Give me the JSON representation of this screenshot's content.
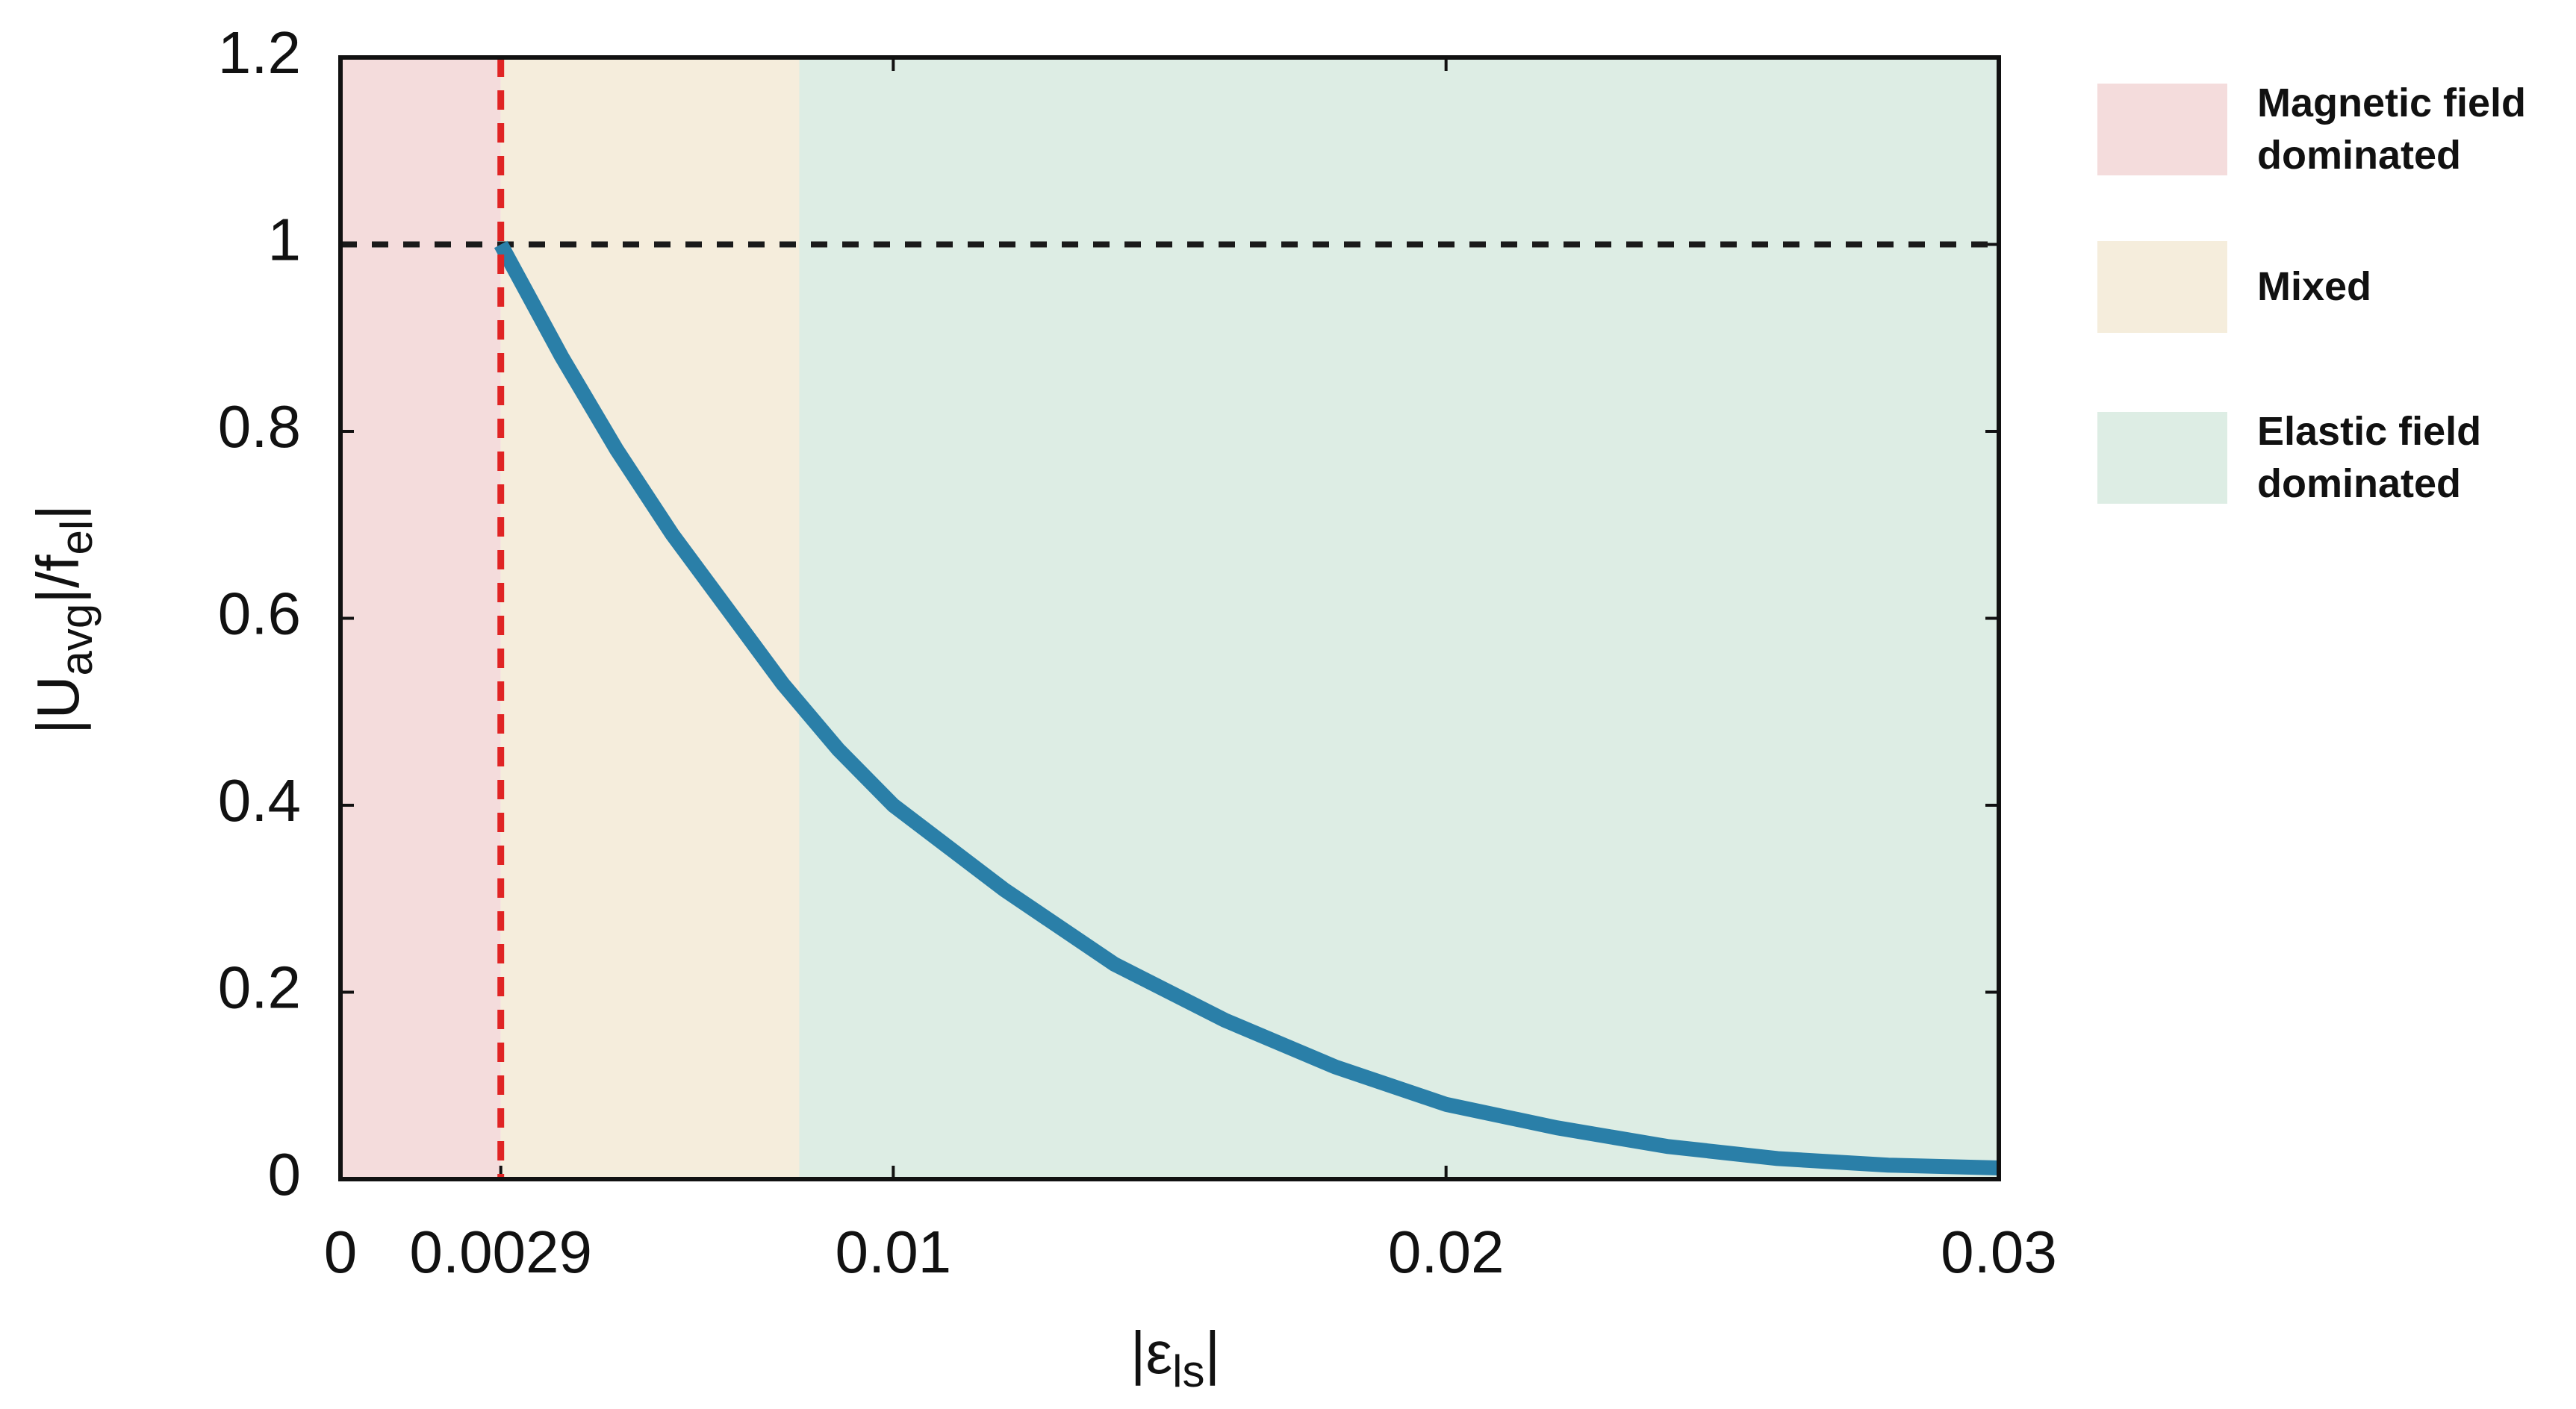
{
  "chart_data": {
    "type": "line",
    "x_label": [
      "|ε",
      "ls",
      "|"
    ],
    "y_label": [
      "|U",
      "avg",
      "|/f",
      "el",
      "|"
    ],
    "x": [
      0.0029,
      0.004,
      0.005,
      0.006,
      0.007,
      0.008,
      0.009,
      0.01,
      0.012,
      0.014,
      0.016,
      0.018,
      0.02,
      0.022,
      0.024,
      0.026,
      0.028,
      0.03
    ],
    "series": [
      {
        "color": "#2a7fa8",
        "values": [
          1,
          0.88,
          0.78,
          0.69,
          0.61,
          0.53,
          0.46,
          0.4,
          0.31,
          0.23,
          0.17,
          0.12,
          0.08,
          0.055,
          0.035,
          0.022,
          0.015,
          0.012
        ]
      }
    ],
    "regions": [
      {
        "name": "Magnetic field dominated",
        "color": "#f4dcdc",
        "x": [
          0,
          0.0029
        ]
      },
      {
        "name": "Mixed",
        "color": "#f5eddc",
        "x": [
          0.0029,
          0.0083
        ]
      },
      {
        "name": "Elastic field dominated",
        "color": "#ddede4",
        "x": [
          0.0083,
          0.03
        ]
      }
    ],
    "hline": {
      "y": 1,
      "color": "#1a1a1a"
    },
    "vline": {
      "x": 0.0029,
      "color": "#e02424"
    },
    "xlim": [
      0,
      0.03
    ],
    "xticks": [
      0,
      0.0029,
      0.01,
      0.02,
      0.03
    ],
    "ylim": [
      0,
      1.2
    ],
    "yticks": [
      0,
      0.2,
      0.4,
      0.6,
      0.8,
      1,
      1.2
    ],
    "legend": "right"
  }
}
